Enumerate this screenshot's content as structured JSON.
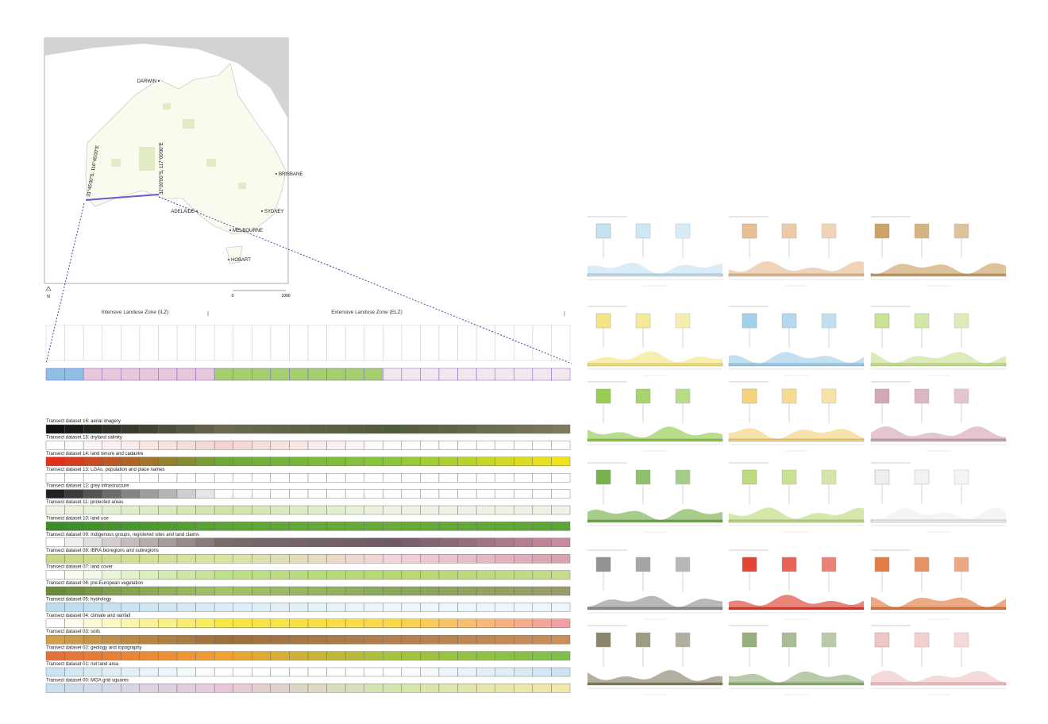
{
  "map": {
    "cities": [
      {
        "label": "DARWIN"
      },
      {
        "label": "BRISBANE"
      },
      {
        "label": "SYDNEY"
      },
      {
        "label": "ADELAIDE"
      },
      {
        "label": "MELBOURNE"
      },
      {
        "label": "HOBART"
      }
    ],
    "coordinates": [
      "31°45'00\"S, 116°45'00\"E",
      "32°00'00\"S, 117°00'00\"E"
    ],
    "north": "N",
    "scale": [
      "0",
      "1000"
    ]
  },
  "zones": [
    "Intensive Landuse Zone (ILZ)",
    "Extensive Landuse Zone (ELZ)"
  ],
  "datasets": [
    {
      "label": "Transect dataset 16: aerial imagery",
      "colors": [
        "#111111",
        "#6b6a4e",
        "#4f5a3a",
        "#7d7a5c"
      ]
    },
    {
      "label": "Transect dataset 15: dryland salinity",
      "colors": [
        "#ffffff",
        "#f4d4d4",
        "#ffffff",
        "#ffffff"
      ]
    },
    {
      "label": "Transect dataset 14: land tenure and cadastre",
      "colors": [
        "#e0301e",
        "#6ea83a",
        "#8cc63f",
        "#f2e21b"
      ]
    },
    {
      "label": "Transect dataset 13: LGAs, population and place names",
      "colors": [
        "#ffffff",
        "#ffffff",
        "#ffffff",
        "#ffffff"
      ]
    },
    {
      "label": "Transect dataset 12: grey infrastructure",
      "colors": [
        "#222222",
        "#ffffff",
        "#ffffff",
        "#ffffff"
      ]
    },
    {
      "label": "Transect dataset 11: protected areas",
      "colors": [
        "#eef4e4",
        "#cfe5a8",
        "#eef4e4",
        "#eef4e4"
      ]
    },
    {
      "label": "Transect dataset 10: land use",
      "colors": [
        "#3d8a2a",
        "#5aa535",
        "#6aab3b",
        "#5aa535"
      ]
    },
    {
      "label": "Transect dataset 09: Indigenous groups, registered sites and land claims",
      "colors": [
        "#ffffff",
        "#7a6a6a",
        "#6e5a66",
        "#c98a9c"
      ]
    },
    {
      "label": "Transect dataset 08: IBRA bioregions and subregions",
      "colors": [
        "#c7d88c",
        "#d9e4a3",
        "#f2d4dc",
        "#d7a3ad"
      ]
    },
    {
      "label": "Transect dataset 07: land cover",
      "colors": [
        "#ffffff",
        "#bfe08a",
        "#b5d86f",
        "#c5dc8a"
      ]
    },
    {
      "label": "Transect dataset 06: pre-European vegetation",
      "colors": [
        "#6a8a3a",
        "#a8c26a",
        "#8aa85a",
        "#9c9c6a"
      ]
    },
    {
      "label": "Transect dataset 05: hydrology",
      "colors": [
        "#bcdcf0",
        "#dcecf6",
        "#eef6fb",
        "#eef6fb"
      ]
    },
    {
      "label": "Transect dataset 04: climate and rainfall",
      "colors": [
        "#ffffff",
        "#f6e84a",
        "#f9d84a",
        "#f3a0a0"
      ]
    },
    {
      "label": "Transect dataset 03: soils",
      "colors": [
        "#d0a050",
        "#9b7040",
        "#b08050",
        "#c8905a"
      ]
    },
    {
      "label": "Transect dataset 02: geology and topography",
      "colors": [
        "#e4703a",
        "#f2a030",
        "#a6c43a",
        "#7fbf4a"
      ]
    },
    {
      "label": "Transect dataset 01: net land area",
      "colors": [
        "#cfe4f2",
        "#ffffff",
        "#ffffff",
        "#cfe4f2"
      ]
    },
    {
      "label": "Transect dataset 00: MGA grid squares",
      "colors": [
        "#cbe0ef",
        "#e8c8d8",
        "#d4e6b0",
        "#f2e6a8"
      ]
    }
  ]
}
